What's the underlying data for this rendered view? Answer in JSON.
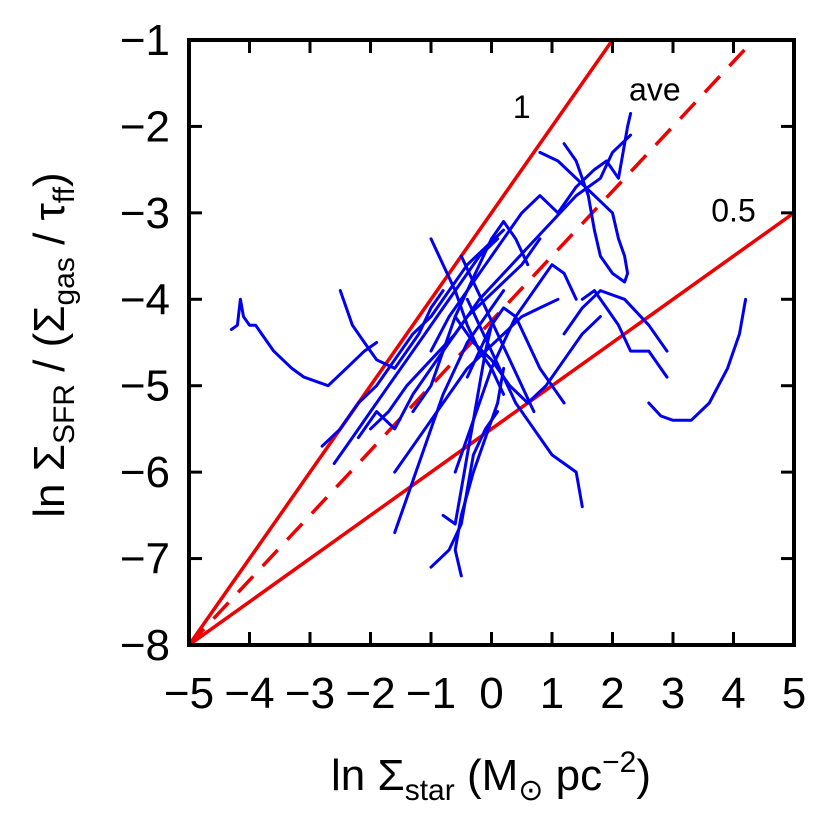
{
  "chart_data": {
    "type": "line",
    "xlabel": {
      "prefix": "ln Σ",
      "sub": "star",
      "units_open": " (M",
      "units_sub": "⊙",
      "units_mid": " pc",
      "units_sup": "−2",
      "units_close": ")"
    },
    "ylabel": {
      "prefix": "ln Σ",
      "sub1": "SFR",
      "mid1": " / (Σ",
      "sub2": "gas",
      "mid2": " / τ",
      "sub3": "ff",
      "close": ")"
    },
    "xlim": [
      -5,
      5
    ],
    "ylim": [
      -8,
      -1
    ],
    "xticks": [
      -5,
      -4,
      -3,
      -2,
      -1,
      0,
      1,
      2,
      3,
      4,
      5
    ],
    "xtick_labels": [
      "−5",
      "−4",
      "−3",
      "−2",
      "−1",
      "0",
      "1",
      "2",
      "3",
      "4",
      "5"
    ],
    "yticks": [
      -8,
      -7,
      -6,
      -5,
      -4,
      -3,
      -2,
      -1
    ],
    "ytick_labels": [
      "−8",
      "−7",
      "−6",
      "−5",
      "−4",
      "−3",
      "−2",
      "−1"
    ],
    "reference_lines": [
      {
        "name": "slope-1",
        "label": "1",
        "slope": 1.0,
        "x0": -5,
        "y0": -8,
        "style": "solid",
        "label_x": 0.5,
        "label_y": -1.9
      },
      {
        "name": "slope-ave",
        "label": "ave",
        "slope": 0.75,
        "x0": -5,
        "y0": -8,
        "style": "dashed",
        "label_x": 2.7,
        "label_y": -1.7
      },
      {
        "name": "slope-0.5",
        "label": "0.5",
        "slope": 0.5,
        "x0": -5,
        "y0": -8,
        "style": "solid",
        "label_x": 4.0,
        "label_y": -3.1
      }
    ],
    "series": [
      {
        "name": "track-1",
        "x": [
          -4.3,
          -4.2,
          -4.15,
          -4.1,
          -4.0,
          -3.9,
          -3.8,
          -3.6,
          -3.3,
          -3.1,
          -2.9,
          -2.7,
          -2.4,
          -2.1,
          -1.9
        ],
        "y": [
          -4.35,
          -4.3,
          -4.0,
          -4.2,
          -4.3,
          -4.3,
          -4.4,
          -4.6,
          -4.8,
          -4.9,
          -4.95,
          -5.0,
          -4.8,
          -4.6,
          -4.5
        ]
      },
      {
        "name": "track-2",
        "x": [
          -2.5,
          -2.3,
          -2.1,
          -1.9,
          -1.6,
          -1.4,
          -1.2,
          -1.0,
          -0.8
        ],
        "y": [
          -3.9,
          -4.3,
          -4.5,
          -4.7,
          -4.8,
          -4.6,
          -4.4,
          -4.1,
          -3.9
        ]
      },
      {
        "name": "track-3",
        "x": [
          -2.8,
          -2.5,
          -2.2,
          -1.9,
          -1.6,
          -1.3,
          -1.0,
          -0.7,
          -0.4,
          -0.1,
          0.2
        ],
        "y": [
          -5.7,
          -5.5,
          -5.2,
          -5.0,
          -4.7,
          -4.4,
          -4.2,
          -3.9,
          -3.6,
          -3.4,
          -3.2
        ]
      },
      {
        "name": "track-4",
        "x": [
          -2.6,
          -2.3,
          -2.0,
          -1.7,
          -1.4,
          -1.1,
          -0.8,
          -0.5,
          -0.2,
          0.1
        ],
        "y": [
          -5.9,
          -5.6,
          -5.3,
          -5.0,
          -4.7,
          -4.4,
          -4.1,
          -3.8,
          -3.5,
          -3.3
        ]
      },
      {
        "name": "track-5",
        "x": [
          -2.2,
          -1.9,
          -1.6,
          -1.3,
          -1.0,
          -0.7,
          -0.4,
          -0.1,
          0.2,
          0.5,
          0.8
        ],
        "y": [
          -5.6,
          -5.3,
          -5.5,
          -5.1,
          -4.8,
          -4.5,
          -4.2,
          -4.0,
          -3.8,
          -3.6,
          -3.3
        ]
      },
      {
        "name": "track-6",
        "x": [
          -2.0,
          -1.7,
          -1.4,
          -1.0,
          -0.6,
          -0.2,
          0.2,
          0.6,
          1.0,
          1.4,
          1.8,
          2.0,
          2.3
        ],
        "y": [
          -5.5,
          -5.3,
          -5.0,
          -4.7,
          -4.4,
          -4.0,
          -3.7,
          -3.4,
          -3.1,
          -2.8,
          -2.6,
          -2.3,
          -2.1
        ]
      },
      {
        "name": "track-7",
        "x": [
          -1.0,
          -0.7,
          -0.4,
          -0.1,
          0.2,
          0.5,
          0.8,
          1.1,
          1.4,
          1.7,
          1.9,
          2.1,
          2.2,
          2.25,
          2.3
        ],
        "y": [
          -4.6,
          -4.2,
          -3.9,
          -3.6,
          -3.3,
          -3.0,
          -2.8,
          -3.0,
          -2.7,
          -2.5,
          -2.4,
          -2.6,
          -2.2,
          -2.0,
          -1.85
        ]
      },
      {
        "name": "track-8",
        "x": [
          0.8,
          1.1,
          1.4,
          1.7,
          2.0,
          2.1,
          2.2,
          2.25,
          2.2,
          2.0,
          1.8,
          1.7,
          1.6,
          1.4,
          1.2
        ],
        "y": [
          -2.3,
          -2.4,
          -2.6,
          -2.8,
          -3.0,
          -3.3,
          -3.5,
          -3.7,
          -3.8,
          -3.7,
          -3.5,
          -3.2,
          -2.8,
          -2.4,
          -2.2
        ]
      },
      {
        "name": "track-9",
        "x": [
          -1.3,
          -1.0,
          -0.8,
          -0.6,
          -0.4,
          -0.2,
          0.0,
          0.2,
          0.4,
          0.6
        ],
        "y": [
          -5.3,
          -5.0,
          -4.6,
          -4.2,
          -3.9,
          -3.6,
          -3.3,
          -3.1,
          -3.3,
          -3.6
        ]
      },
      {
        "name": "track-10",
        "x": [
          -0.6,
          -0.4,
          -0.2,
          0.0,
          0.2,
          0.4,
          0.6,
          0.8,
          1.0,
          1.2,
          1.4
        ],
        "y": [
          -6.0,
          -5.6,
          -5.2,
          -4.8,
          -4.5,
          -4.2,
          -4.0,
          -3.8,
          -3.6,
          -3.7,
          -4.0
        ]
      },
      {
        "name": "track-11",
        "x": [
          -0.4,
          -0.2,
          0.0,
          0.2,
          0.4,
          0.6,
          0.8,
          1.0,
          1.2,
          1.4,
          1.5
        ],
        "y": [
          -4.0,
          -4.3,
          -4.6,
          -4.9,
          -5.2,
          -5.4,
          -5.6,
          -5.8,
          -5.9,
          -6.0,
          -6.4
        ]
      },
      {
        "name": "track-12",
        "x": [
          -0.8,
          -0.6,
          -0.5,
          -0.4,
          -0.3,
          -0.2,
          -0.1,
          0.0
        ],
        "y": [
          -6.5,
          -6.6,
          -6.2,
          -5.8,
          -5.4,
          -5.0,
          -4.6,
          -4.3
        ]
      },
      {
        "name": "track-13",
        "x": [
          -0.5,
          -0.6,
          -0.5,
          -0.3,
          -0.1,
          0.1,
          0.2
        ],
        "y": [
          -7.2,
          -6.9,
          -6.5,
          -6.0,
          -5.6,
          -5.2,
          -4.8
        ]
      },
      {
        "name": "track-14",
        "x": [
          -1.0,
          -0.7,
          -0.5,
          -0.4,
          -0.3,
          -0.1,
          0.1
        ],
        "y": [
          -7.1,
          -6.9,
          -6.6,
          -6.2,
          -5.8,
          -5.5,
          -5.3
        ]
      },
      {
        "name": "track-15",
        "x": [
          -1.6,
          -1.4,
          -1.2,
          -1.0,
          -0.8,
          -0.6,
          -0.4,
          -0.2,
          0.0,
          0.2
        ],
        "y": [
          -6.7,
          -6.3,
          -5.9,
          -5.5,
          -5.1,
          -4.8,
          -4.5,
          -4.3,
          -4.1,
          -3.9
        ]
      },
      {
        "name": "track-16",
        "x": [
          -1.6,
          -1.3,
          -1.0,
          -0.7,
          -0.4,
          -0.1,
          0.2,
          0.5,
          0.8,
          1.1
        ],
        "y": [
          -6.0,
          -5.7,
          -5.4,
          -5.1,
          -4.8,
          -4.6,
          -4.4,
          -4.2,
          -4.1,
          -4.0
        ]
      },
      {
        "name": "track-17",
        "x": [
          -0.6,
          -0.3,
          0.0,
          0.3,
          0.6,
          0.9,
          1.2,
          1.5,
          1.8
        ],
        "y": [
          -4.2,
          -4.5,
          -4.7,
          -5.0,
          -5.2,
          -5.0,
          -4.7,
          -4.4,
          -4.2
        ]
      },
      {
        "name": "track-18",
        "x": [
          1.5,
          1.7,
          1.9,
          2.1,
          2.3,
          2.6,
          2.9
        ],
        "y": [
          -4.0,
          -3.9,
          -4.1,
          -4.3,
          -4.6,
          -4.6,
          -4.9
        ]
      },
      {
        "name": "track-19",
        "x": [
          1.2,
          1.5,
          1.8,
          2.2,
          2.6,
          2.9
        ],
        "y": [
          -4.4,
          -4.1,
          -3.9,
          -4.0,
          -4.3,
          -4.6
        ]
      },
      {
        "name": "track-20",
        "x": [
          2.6,
          2.8,
          3.0,
          3.3,
          3.6,
          3.9,
          4.1,
          4.2
        ],
        "y": [
          -5.2,
          -5.35,
          -5.4,
          -5.4,
          -5.2,
          -4.8,
          -4.4,
          -4.0
        ]
      },
      {
        "name": "track-21",
        "x": [
          -0.4,
          -0.2,
          0.0,
          0.2,
          0.4,
          0.6,
          0.8,
          1.0,
          1.2
        ],
        "y": [
          -4.9,
          -4.6,
          -4.3,
          -4.1,
          -4.2,
          -4.5,
          -4.8,
          -5.0,
          -5.2
        ]
      },
      {
        "name": "track-22",
        "x": [
          -0.5,
          -0.3,
          -0.1,
          0.1,
          0.3,
          0.5,
          0.7
        ],
        "y": [
          -3.5,
          -3.8,
          -4.1,
          -4.4,
          -4.7,
          -5.0,
          -5.3
        ]
      },
      {
        "name": "track-23",
        "x": [
          -1.0,
          -0.8,
          -0.6,
          -0.4,
          -0.2,
          0.0,
          0.2
        ],
        "y": [
          -3.3,
          -3.6,
          -3.9,
          -4.3,
          -4.6,
          -4.8,
          -5.1
        ]
      }
    ],
    "colors": {
      "series": "#0000ee",
      "reference": "#ee0000",
      "axes": "#000000"
    }
  }
}
